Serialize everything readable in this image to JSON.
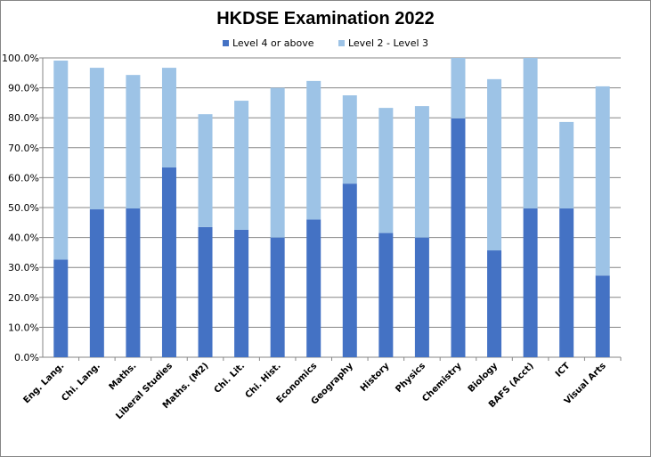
{
  "chart_data": {
    "type": "bar",
    "stacked": true,
    "title": "HKDSE Examination 2022",
    "categories": [
      "Eng. Lang.",
      "Chi. Lang.",
      "Maths.",
      "Liberal Studies",
      "Maths. (M2)",
      "Chi. Lit.",
      "Chi. Hist.",
      "Economics",
      "Geography",
      "History",
      "Physics",
      "Chemistry",
      "Biology",
      "BAFS (Acct)",
      "ICT",
      "Visual Arts"
    ],
    "series": [
      {
        "name": "Level 4 or above",
        "color": "#4472C4",
        "values": [
          32.6,
          49.4,
          49.7,
          63.4,
          43.5,
          42.6,
          40.0,
          46.0,
          58.0,
          41.5,
          40.0,
          79.8,
          35.7,
          49.7,
          49.7,
          27.3
        ]
      },
      {
        "name": "Level 2 - Level 3",
        "color": "#9DC3E6",
        "values": [
          66.5,
          47.3,
          44.6,
          33.3,
          37.7,
          43.1,
          50.0,
          46.3,
          29.5,
          41.8,
          43.9,
          20.2,
          57.2,
          50.3,
          28.9,
          63.2
        ]
      }
    ],
    "ylim": [
      0,
      100
    ],
    "yticks": [
      "0.0%",
      "10.0%",
      "20.0%",
      "30.0%",
      "40.0%",
      "50.0%",
      "60.0%",
      "70.0%",
      "80.0%",
      "90.0%",
      "100.0%"
    ],
    "grid": true,
    "legend": "top"
  }
}
